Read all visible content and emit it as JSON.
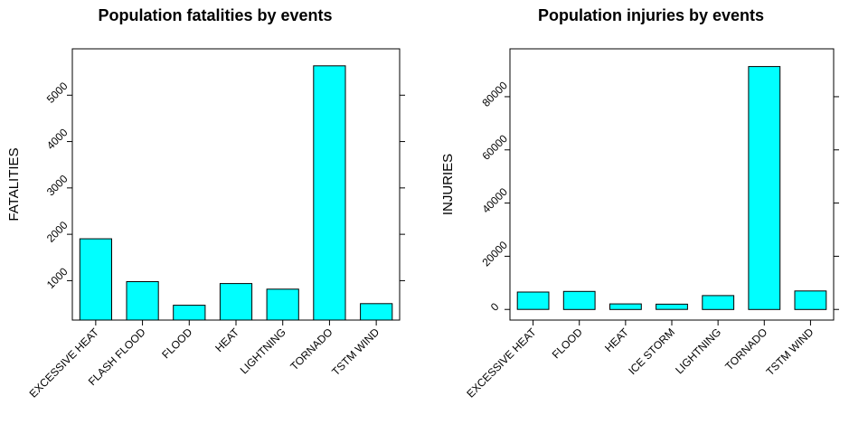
{
  "chart_data": [
    {
      "type": "bar",
      "title": "Population fatalities by events",
      "xlabel": "",
      "ylabel": "FATALITIES",
      "categories": [
        "EXCESSIVE HEAT",
        "FLASH FLOOD",
        "FLOOD",
        "HEAT",
        "LIGHTNING",
        "TORNADO",
        "TSTM WIND"
      ],
      "values": [
        1903,
        978,
        470,
        937,
        816,
        5633,
        504
      ],
      "ylim": [
        150,
        6000
      ],
      "yticks": [
        1000,
        2000,
        3000,
        4000,
        5000
      ],
      "bar_color": "#00ffff",
      "grid": false
    },
    {
      "type": "bar",
      "title": "Population injuries by events",
      "xlabel": "",
      "ylabel": "INJURIES",
      "categories": [
        "EXCESSIVE HEAT",
        "FLOOD",
        "HEAT",
        "ICE STORM",
        "LIGHTNING",
        "TORNADO",
        "TSTM WIND"
      ],
      "values": [
        6525,
        6789,
        2100,
        1975,
        5230,
        91346,
        6957
      ],
      "ylim": [
        -4000,
        98000
      ],
      "yticks": [
        0,
        20000,
        40000,
        60000,
        80000
      ],
      "bar_color": "#00ffff",
      "grid": false
    }
  ]
}
